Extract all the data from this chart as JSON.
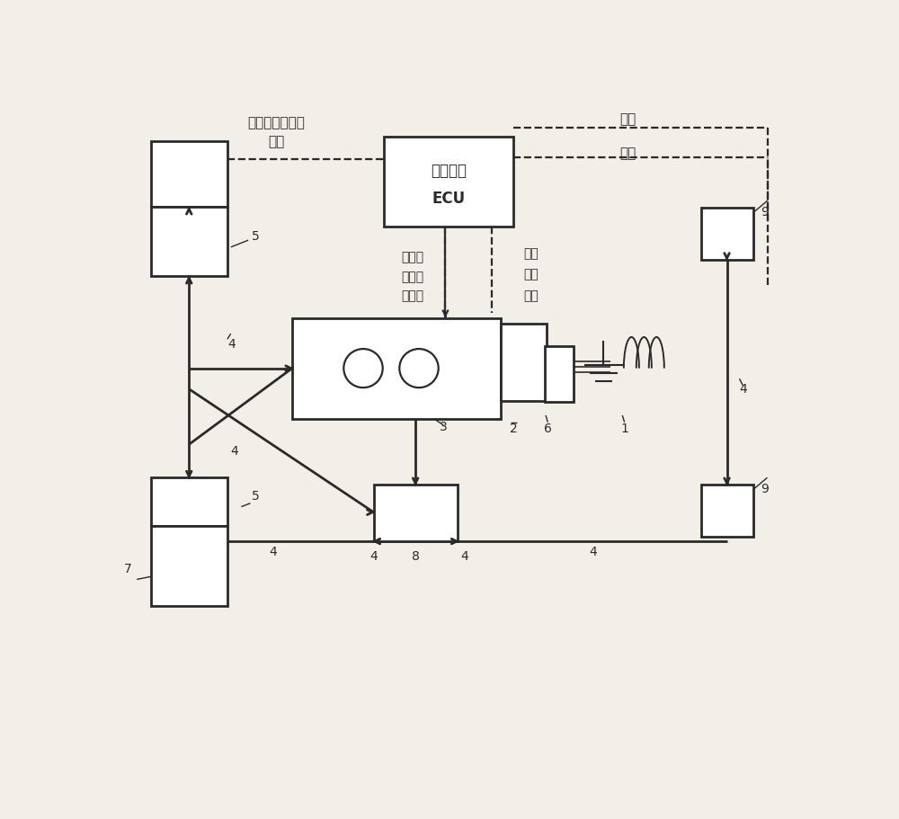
{
  "bg_color": "#f2efe9",
  "line_color": "#2a2a2a",
  "dashed_color": "#2a2a2a",
  "figsize": [
    10.0,
    9.11
  ],
  "dpi": 100,
  "text": {
    "motor_ctrl1": "电机制动力控制",
    "motor_ctrl2": "信号",
    "ecu1": "复合制动",
    "ecu2": "ECU",
    "speed": "车速",
    "wheel_speed": "轮速",
    "brake1": "制动",
    "brake2": "踏板",
    "brake3": "位置",
    "hyd1": "液压制",
    "hyd2": "动力控",
    "hyd3": "制信号",
    "n1": "1",
    "n2": "2",
    "n3": "3",
    "n4a": "4",
    "n4b": "4",
    "n4c": "4",
    "n4d": "4",
    "n5a": "5",
    "n5b": "5",
    "n6": "6",
    "n7": "7",
    "n8": "8",
    "n9a": "9",
    "n9b": "9"
  }
}
